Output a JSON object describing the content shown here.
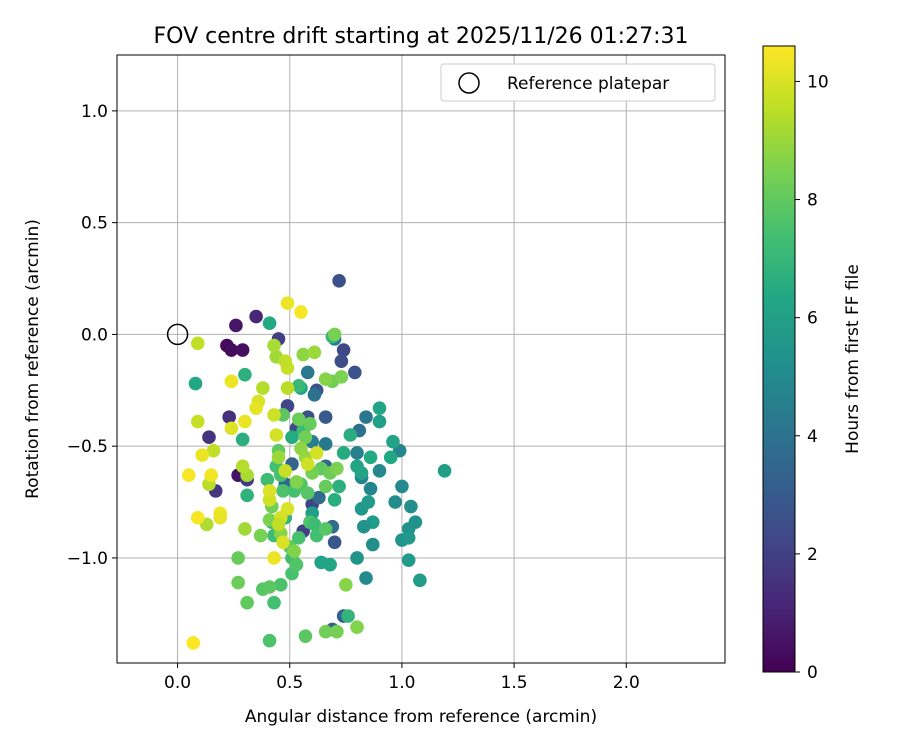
{
  "chart_data": {
    "type": "scatter",
    "title": "FOV centre drift starting at 2025/11/26 01:27:31",
    "xlabel": "Angular distance from reference (arcmin)",
    "ylabel": "Rotation from reference (arcmin)",
    "xlim": [
      -0.27,
      2.44
    ],
    "ylim": [
      -1.47,
      1.25
    ],
    "xticks": [
      0.0,
      0.5,
      1.0,
      1.5,
      2.0
    ],
    "xtick_labels": [
      "0.0",
      "0.5",
      "1.0",
      "1.5",
      "2.0"
    ],
    "yticks": [
      1.0,
      0.5,
      0.0,
      -0.5,
      -1.0
    ],
    "ytick_labels": [
      "1.0",
      "0.5",
      "0.0",
      "−0.5",
      "−1.0"
    ],
    "grid": true,
    "legend": {
      "placement": "top-right",
      "entries": [
        {
          "label": "Reference platepar",
          "marker": "open-circle",
          "x": 0.0,
          "y": 0.0
        }
      ]
    },
    "colorbar": {
      "label": "Hours from first FF file",
      "colormap": "viridis",
      "range": [
        0,
        10.6
      ],
      "ticks": [
        0,
        2,
        4,
        6,
        8,
        10
      ],
      "tick_labels": [
        "0",
        "2",
        "4",
        "6",
        "8",
        "10"
      ]
    },
    "points": [
      {
        "x": 0.22,
        "y": -0.05,
        "c": 0.2
      },
      {
        "x": 0.24,
        "y": -0.07,
        "c": 0.3
      },
      {
        "x": 0.26,
        "y": 0.04,
        "c": 0.6
      },
      {
        "x": 0.29,
        "y": -0.07,
        "c": 0.4
      },
      {
        "x": 0.27,
        "y": -0.63,
        "c": 0.5
      },
      {
        "x": 0.35,
        "y": 0.08,
        "c": 1.2
      },
      {
        "x": 0.23,
        "y": -0.37,
        "c": 1.5
      },
      {
        "x": 0.14,
        "y": -0.46,
        "c": 1.6
      },
      {
        "x": 0.17,
        "y": -0.7,
        "c": 1.7
      },
      {
        "x": 0.31,
        "y": -0.65,
        "c": 1.9
      },
      {
        "x": 0.45,
        "y": -0.02,
        "c": 2.0
      },
      {
        "x": 0.49,
        "y": -0.32,
        "c": 2.2
      },
      {
        "x": 0.53,
        "y": -0.42,
        "c": 2.4
      },
      {
        "x": 0.58,
        "y": -0.37,
        "c": 2.6
      },
      {
        "x": 0.62,
        "y": -0.25,
        "c": 2.8
      },
      {
        "x": 0.66,
        "y": -0.37,
        "c": 3.0
      },
      {
        "x": 0.72,
        "y": 0.24,
        "c": 2.6
      },
      {
        "x": 0.74,
        "y": -0.07,
        "c": 2.3
      },
      {
        "x": 0.73,
        "y": -0.12,
        "c": 2.5
      },
      {
        "x": 0.79,
        "y": -0.17,
        "c": 2.7
      },
      {
        "x": 0.6,
        "y": -0.76,
        "c": 2.1
      },
      {
        "x": 0.56,
        "y": -0.88,
        "c": 2.0
      },
      {
        "x": 0.7,
        "y": -0.93,
        "c": 2.9
      },
      {
        "x": 0.74,
        "y": -1.26,
        "c": 3.2
      },
      {
        "x": 0.69,
        "y": -1.32,
        "c": 3.3
      },
      {
        "x": 0.51,
        "y": -0.58,
        "c": 3.4
      },
      {
        "x": 0.66,
        "y": -0.59,
        "c": 3.5
      },
      {
        "x": 0.48,
        "y": -0.67,
        "c": 3.6
      },
      {
        "x": 0.63,
        "y": -0.73,
        "c": 3.7
      },
      {
        "x": 0.69,
        "y": -0.86,
        "c": 3.8
      },
      {
        "x": 0.81,
        "y": -0.43,
        "c": 3.9
      },
      {
        "x": 0.84,
        "y": -0.37,
        "c": 4.1
      },
      {
        "x": 0.58,
        "y": -0.17,
        "c": 4.2
      },
      {
        "x": 0.61,
        "y": -0.27,
        "c": 4.0
      },
      {
        "x": 0.7,
        "y": -0.02,
        "c": 4.4
      },
      {
        "x": 0.6,
        "y": -0.48,
        "c": 4.5
      },
      {
        "x": 0.66,
        "y": -0.49,
        "c": 4.3
      },
      {
        "x": 0.8,
        "y": -0.53,
        "c": 4.6
      },
      {
        "x": 0.82,
        "y": -0.64,
        "c": 4.7
      },
      {
        "x": 0.86,
        "y": -0.69,
        "c": 4.8
      },
      {
        "x": 0.9,
        "y": -0.61,
        "c": 4.9
      },
      {
        "x": 0.99,
        "y": -0.52,
        "c": 4.8
      },
      {
        "x": 1.0,
        "y": -0.68,
        "c": 5.0
      },
      {
        "x": 0.97,
        "y": -0.75,
        "c": 5.1
      },
      {
        "x": 1.04,
        "y": -0.77,
        "c": 5.2
      },
      {
        "x": 1.06,
        "y": -0.84,
        "c": 5.3
      },
      {
        "x": 1.03,
        "y": -0.87,
        "c": 5.4
      },
      {
        "x": 1.0,
        "y": -0.92,
        "c": 5.5
      },
      {
        "x": 1.03,
        "y": -0.91,
        "c": 5.6
      },
      {
        "x": 1.03,
        "y": -1.01,
        "c": 5.7
      },
      {
        "x": 1.08,
        "y": -1.1,
        "c": 5.8
      },
      {
        "x": 1.19,
        "y": -0.61,
        "c": 5.9
      },
      {
        "x": 0.87,
        "y": -0.94,
        "c": 5.2
      },
      {
        "x": 0.84,
        "y": -1.09,
        "c": 5.0
      },
      {
        "x": 0.8,
        "y": -1.0,
        "c": 5.5
      },
      {
        "x": 0.82,
        "y": -0.78,
        "c": 5.6
      },
      {
        "x": 0.85,
        "y": -0.75,
        "c": 5.7
      },
      {
        "x": 0.87,
        "y": -0.84,
        "c": 5.8
      },
      {
        "x": 0.83,
        "y": -0.86,
        "c": 5.4
      },
      {
        "x": 0.9,
        "y": -0.39,
        "c": 6.0
      },
      {
        "x": 0.9,
        "y": -0.33,
        "c": 6.2
      },
      {
        "x": 0.96,
        "y": -0.48,
        "c": 6.1
      },
      {
        "x": 0.95,
        "y": -0.55,
        "c": 6.3
      },
      {
        "x": 0.82,
        "y": -0.62,
        "c": 6.1
      },
      {
        "x": 0.86,
        "y": -0.55,
        "c": 6.4
      },
      {
        "x": 0.8,
        "y": -0.59,
        "c": 6.2
      },
      {
        "x": 0.74,
        "y": -0.53,
        "c": 6.5
      },
      {
        "x": 0.77,
        "y": -0.45,
        "c": 6.6
      },
      {
        "x": 0.55,
        "y": -0.24,
        "c": 6.3
      },
      {
        "x": 0.51,
        "y": -0.46,
        "c": 6.5
      },
      {
        "x": 0.41,
        "y": 0.05,
        "c": 6.4
      },
      {
        "x": 0.08,
        "y": -0.22,
        "c": 6.3
      },
      {
        "x": 0.29,
        "y": -0.47,
        "c": 6.6
      },
      {
        "x": 0.3,
        "y": -0.18,
        "c": 6.7
      },
      {
        "x": 0.31,
        "y": -0.72,
        "c": 6.8
      },
      {
        "x": 0.48,
        "y": -0.82,
        "c": 6.9
      },
      {
        "x": 0.6,
        "y": -0.8,
        "c": 6.0
      },
      {
        "x": 0.64,
        "y": -1.02,
        "c": 6.1
      },
      {
        "x": 0.68,
        "y": -1.03,
        "c": 6.2
      },
      {
        "x": 0.7,
        "y": -0.74,
        "c": 6.6
      },
      {
        "x": 0.72,
        "y": -0.68,
        "c": 6.7
      },
      {
        "x": 0.76,
        "y": -1.26,
        "c": 6.9
      },
      {
        "x": 0.69,
        "y": -0.01,
        "c": 7.0
      },
      {
        "x": 0.56,
        "y": -0.43,
        "c": 7.2
      },
      {
        "x": 0.54,
        "y": -0.23,
        "c": 7.1
      },
      {
        "x": 0.42,
        "y": -0.84,
        "c": 7.1
      },
      {
        "x": 0.43,
        "y": -0.9,
        "c": 7.3
      },
      {
        "x": 0.4,
        "y": -0.65,
        "c": 7.3
      },
      {
        "x": 0.44,
        "y": -0.59,
        "c": 7.4
      },
      {
        "x": 0.46,
        "y": -0.63,
        "c": 7.5
      },
      {
        "x": 0.47,
        "y": -0.7,
        "c": 7.6
      },
      {
        "x": 0.52,
        "y": -0.7,
        "c": 7.4
      },
      {
        "x": 0.55,
        "y": -0.67,
        "c": 7.7
      },
      {
        "x": 0.58,
        "y": -0.71,
        "c": 7.8
      },
      {
        "x": 0.54,
        "y": -0.91,
        "c": 7.5
      },
      {
        "x": 0.59,
        "y": -0.84,
        "c": 7.6
      },
      {
        "x": 0.61,
        "y": -0.85,
        "c": 7.2
      },
      {
        "x": 0.62,
        "y": -0.9,
        "c": 7.4
      },
      {
        "x": 0.66,
        "y": -0.87,
        "c": 7.8
      },
      {
        "x": 0.5,
        "y": -0.95,
        "c": 7.9
      },
      {
        "x": 0.51,
        "y": -1.0,
        "c": 7.3
      },
      {
        "x": 0.51,
        "y": -1.07,
        "c": 7.5
      },
      {
        "x": 0.53,
        "y": -1.03,
        "c": 7.7
      },
      {
        "x": 0.46,
        "y": -1.12,
        "c": 7.6
      },
      {
        "x": 0.38,
        "y": -1.14,
        "c": 7.8
      },
      {
        "x": 0.41,
        "y": -1.13,
        "c": 7.9
      },
      {
        "x": 0.43,
        "y": -1.2,
        "c": 7.4
      },
      {
        "x": 0.31,
        "y": -1.2,
        "c": 8.0
      },
      {
        "x": 0.27,
        "y": -1.0,
        "c": 8.1
      },
      {
        "x": 0.27,
        "y": -1.11,
        "c": 8.2
      },
      {
        "x": 0.41,
        "y": -1.37,
        "c": 7.6
      },
      {
        "x": 0.57,
        "y": -1.35,
        "c": 7.9
      },
      {
        "x": 0.66,
        "y": -1.33,
        "c": 8.3
      },
      {
        "x": 0.71,
        "y": -1.33,
        "c": 8.4
      },
      {
        "x": 0.8,
        "y": -1.31,
        "c": 8.6
      },
      {
        "x": 0.75,
        "y": -1.12,
        "c": 8.7
      },
      {
        "x": 0.64,
        "y": -0.6,
        "c": 8.0
      },
      {
        "x": 0.68,
        "y": -0.62,
        "c": 8.2
      },
      {
        "x": 0.71,
        "y": -0.6,
        "c": 8.5
      },
      {
        "x": 0.66,
        "y": -0.68,
        "c": 8.1
      },
      {
        "x": 0.6,
        "y": -0.62,
        "c": 8.4
      },
      {
        "x": 0.57,
        "y": -0.46,
        "c": 8.3
      },
      {
        "x": 0.55,
        "y": -0.51,
        "c": 8.8
      },
      {
        "x": 0.57,
        "y": -0.55,
        "c": 8.9
      },
      {
        "x": 0.53,
        "y": -0.66,
        "c": 8.6
      },
      {
        "x": 0.59,
        "y": -0.4,
        "c": 8.1
      },
      {
        "x": 0.54,
        "y": -0.38,
        "c": 8.2
      },
      {
        "x": 0.47,
        "y": -0.36,
        "c": 7.9
      },
      {
        "x": 0.45,
        "y": -0.52,
        "c": 8.0
      },
      {
        "x": 0.42,
        "y": -0.77,
        "c": 8.3
      },
      {
        "x": 0.41,
        "y": -0.83,
        "c": 8.5
      },
      {
        "x": 0.45,
        "y": -0.84,
        "c": 8.2
      },
      {
        "x": 0.46,
        "y": -0.89,
        "c": 8.7
      },
      {
        "x": 0.37,
        "y": -0.9,
        "c": 8.4
      },
      {
        "x": 0.52,
        "y": -0.97,
        "c": 8.6
      },
      {
        "x": 0.69,
        "y": -0.21,
        "c": 8.3
      },
      {
        "x": 0.73,
        "y": -0.19,
        "c": 8.5
      },
      {
        "x": 0.66,
        "y": -0.2,
        "c": 8.7
      },
      {
        "x": 0.7,
        "y": 0.0,
        "c": 8.4
      },
      {
        "x": 0.56,
        "y": -0.09,
        "c": 8.8
      },
      {
        "x": 0.61,
        "y": -0.08,
        "c": 9.0
      },
      {
        "x": 0.44,
        "y": -0.1,
        "c": 9.1
      },
      {
        "x": 0.43,
        "y": -0.05,
        "c": 9.2
      },
      {
        "x": 0.45,
        "y": -0.55,
        "c": 9.0
      },
      {
        "x": 0.31,
        "y": -0.63,
        "c": 9.2
      },
      {
        "x": 0.29,
        "y": -0.59,
        "c": 9.4
      },
      {
        "x": 0.3,
        "y": -0.87,
        "c": 9.1
      },
      {
        "x": 0.13,
        "y": -0.85,
        "c": 9.3
      },
      {
        "x": 0.14,
        "y": -0.67,
        "c": 9.5
      },
      {
        "x": 0.16,
        "y": -0.52,
        "c": 9.6
      },
      {
        "x": 0.09,
        "y": -0.39,
        "c": 9.7
      },
      {
        "x": 0.09,
        "y": -0.04,
        "c": 9.6
      },
      {
        "x": 0.38,
        "y": -0.24,
        "c": 9.4
      },
      {
        "x": 0.43,
        "y": -0.36,
        "c": 9.8
      },
      {
        "x": 0.44,
        "y": -0.45,
        "c": 9.9
      },
      {
        "x": 0.49,
        "y": -0.15,
        "c": 9.7
      },
      {
        "x": 0.49,
        "y": -0.24,
        "c": 9.5
      },
      {
        "x": 0.48,
        "y": -0.12,
        "c": 9.6
      },
      {
        "x": 0.62,
        "y": -0.53,
        "c": 9.9
      },
      {
        "x": 0.58,
        "y": -0.58,
        "c": 9.8
      },
      {
        "x": 0.48,
        "y": -0.61,
        "c": 9.7
      },
      {
        "x": 0.41,
        "y": -0.74,
        "c": 9.8
      },
      {
        "x": 0.41,
        "y": -0.7,
        "c": 10.0
      },
      {
        "x": 0.49,
        "y": -0.78,
        "c": 10.0
      },
      {
        "x": 0.46,
        "y": -0.82,
        "c": 9.9
      },
      {
        "x": 0.45,
        "y": -0.85,
        "c": 9.6
      },
      {
        "x": 0.47,
        "y": -0.93,
        "c": 10.0
      },
      {
        "x": 0.43,
        "y": -1.0,
        "c": 10.3
      },
      {
        "x": 0.36,
        "y": -0.3,
        "c": 10.0
      },
      {
        "x": 0.35,
        "y": -0.33,
        "c": 10.2
      },
      {
        "x": 0.24,
        "y": -0.21,
        "c": 10.3
      },
      {
        "x": 0.24,
        "y": -0.42,
        "c": 10.1
      },
      {
        "x": 0.3,
        "y": -0.39,
        "c": 10.3
      },
      {
        "x": 0.15,
        "y": -0.63,
        "c": 10.4
      },
      {
        "x": 0.11,
        "y": -0.54,
        "c": 10.3
      },
      {
        "x": 0.05,
        "y": -0.63,
        "c": 10.5
      },
      {
        "x": 0.09,
        "y": -0.82,
        "c": 10.5
      },
      {
        "x": 0.19,
        "y": -0.8,
        "c": 10.4
      },
      {
        "x": 0.19,
        "y": -0.82,
        "c": 10.2
      },
      {
        "x": 0.49,
        "y": 0.14,
        "c": 10.3
      },
      {
        "x": 0.55,
        "y": 0.1,
        "c": 10.5
      },
      {
        "x": 0.07,
        "y": -1.38,
        "c": 10.6
      }
    ]
  }
}
